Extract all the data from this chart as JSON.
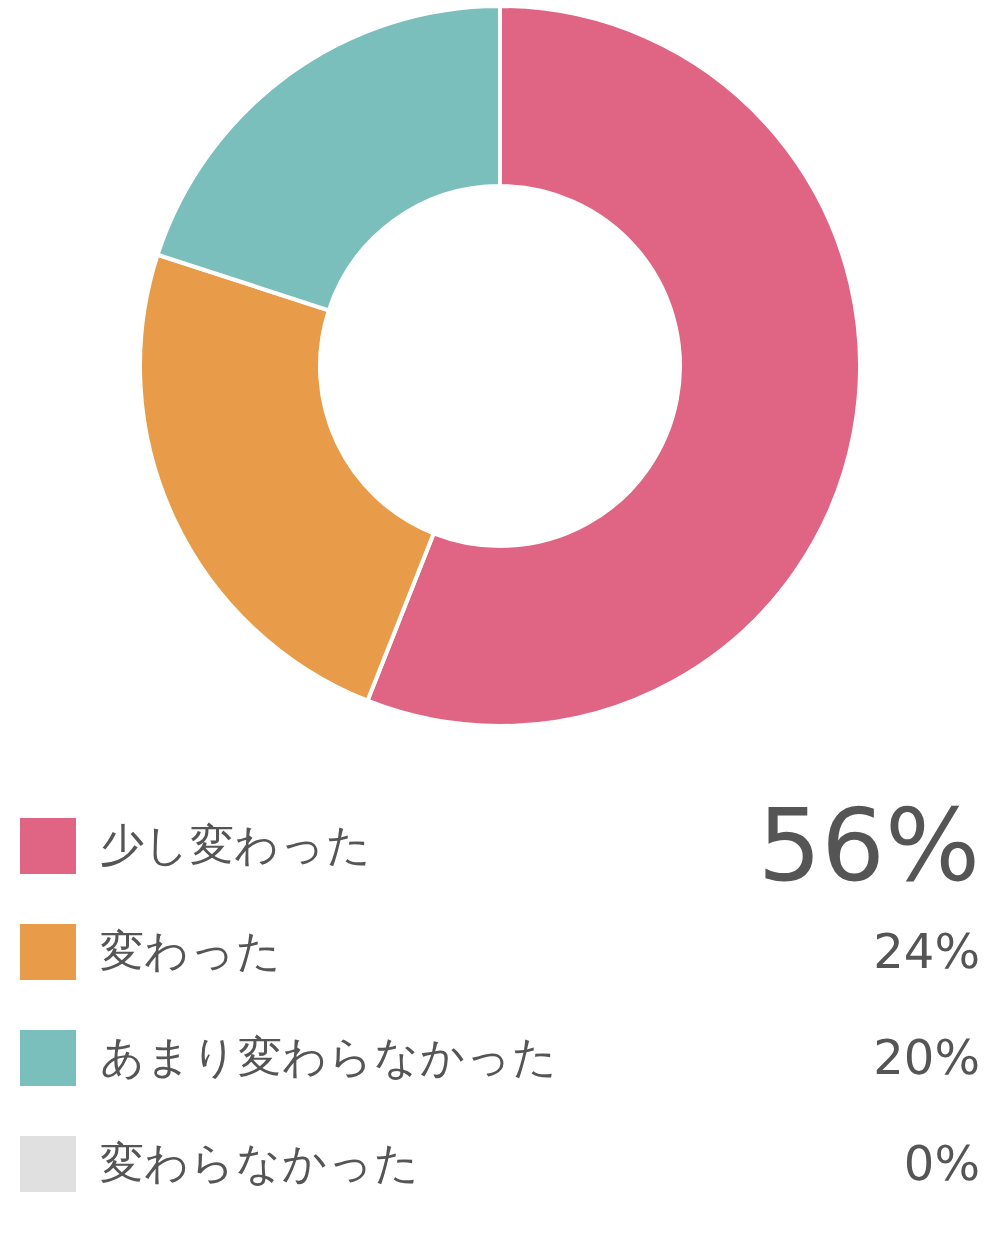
{
  "chart_data": {
    "type": "donut",
    "categories": [
      "少し変わった",
      "変わった",
      "あまり変わらなかった",
      "変わらなかった"
    ],
    "values": [
      56,
      24,
      20,
      0
    ],
    "colors": [
      "#e06483",
      "#e89c4a",
      "#7bbfbc",
      "#e0e0e0"
    ],
    "value_labels": [
      "56%",
      "24%",
      "20%",
      "0%"
    ],
    "legend": "bottom"
  }
}
